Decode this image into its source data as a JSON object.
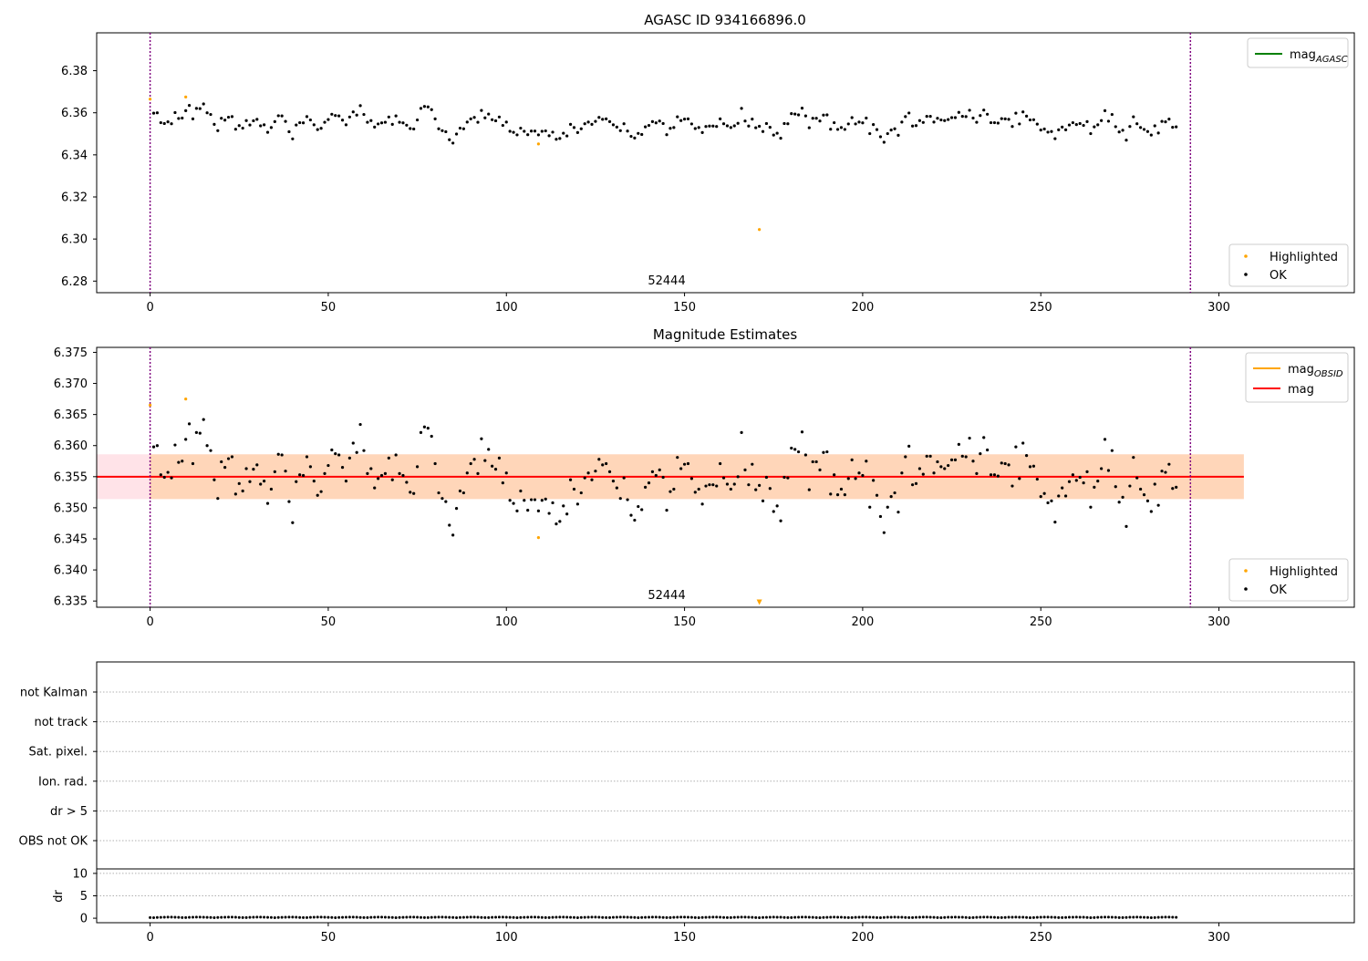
{
  "figure": {
    "suptitle": "AGASC ID 934166896.0"
  },
  "chart_data": [
    {
      "type": "scatter",
      "title": "",
      "obsid_label": "52444",
      "xlim": [
        -15,
        338
      ],
      "ylim": [
        6.2745,
        6.398
      ],
      "xticks": [
        0,
        50,
        100,
        150,
        200,
        250,
        300
      ],
      "yticks": [
        6.28,
        6.3,
        6.32,
        6.34,
        6.36,
        6.38
      ],
      "ytick_labels": [
        "6.28",
        "6.30",
        "6.32",
        "6.34",
        "6.36",
        "6.38"
      ],
      "vlines": [
        0,
        292
      ],
      "vline_color": "#800080",
      "legend_top": {
        "position": "upper right",
        "entries": [
          {
            "label": "mag",
            "subscript": "AGASC",
            "color": "#008000"
          }
        ]
      },
      "legend_bottom": {
        "position": "lower right",
        "entries": [
          {
            "label": "Highlighted",
            "color": "#ffa500"
          },
          {
            "label": "OK",
            "color": "#000000"
          }
        ]
      },
      "highlighted": [
        {
          "x": 0,
          "y": 6.3665
        },
        {
          "x": 10,
          "y": 6.3675
        },
        {
          "x": 109,
          "y": 6.3452
        },
        {
          "x": 171,
          "y": 6.3045
        }
      ]
    },
    {
      "type": "scatter",
      "title": "Magnitude Estimates",
      "obsid_label": "52444",
      "xlim": [
        -15,
        338
      ],
      "ylim": [
        6.334,
        6.3758
      ],
      "xticks": [
        0,
        50,
        100,
        150,
        200,
        250,
        300
      ],
      "yticks": [
        6.335,
        6.34,
        6.345,
        6.35,
        6.355,
        6.36,
        6.365,
        6.37,
        6.375
      ],
      "ytick_labels": [
        "6.335",
        "6.340",
        "6.345",
        "6.350",
        "6.355",
        "6.360",
        "6.365",
        "6.370",
        "6.375"
      ],
      "vlines": [
        0,
        292
      ],
      "vline_color": "#800080",
      "mean_mag": 6.355,
      "band_outer": [
        6.3514,
        6.3586
      ],
      "band_inner": [
        6.3514,
        6.3586
      ],
      "band_x": [
        -15,
        307
      ],
      "inner_band_x": [
        0,
        307
      ],
      "mean_color": "#ff0000",
      "band_color_outer": "#ffc0cb",
      "band_color_inner": "#ffa500",
      "legend_top": {
        "position": "upper right",
        "entries": [
          {
            "label": "mag",
            "subscript": "OBSID",
            "color": "#ffa500"
          },
          {
            "label": "mag",
            "subscript": "",
            "color": "#ff0000"
          }
        ]
      },
      "legend_bottom": {
        "position": "lower right",
        "entries": [
          {
            "label": "Highlighted",
            "color": "#ffa500"
          },
          {
            "label": "OK",
            "color": "#000000"
          }
        ]
      },
      "highlighted": [
        {
          "x": 0,
          "y": 6.3665
        },
        {
          "x": 10,
          "y": 6.3675
        },
        {
          "x": 109,
          "y": 6.3452
        }
      ],
      "off_scale_marker": {
        "x": 171,
        "y": 6.3348,
        "label": "v"
      }
    },
    {
      "type": "flags",
      "categories": [
        "not Kalman",
        "not track",
        "Sat. pixel.",
        "Ion. rad.",
        "dr > 5",
        "OBS not OK"
      ],
      "xlim": [
        -15,
        338
      ],
      "vlines": [
        0,
        292
      ]
    },
    {
      "type": "scatter",
      "ylabel": "dr",
      "ylim": [
        -1,
        11
      ],
      "yticks": [
        0,
        5,
        10
      ],
      "ytick_labels": [
        "0",
        "5",
        "10"
      ],
      "xticks": [
        0,
        50,
        100,
        150,
        200,
        250,
        300
      ],
      "xlim": [
        -15,
        338
      ],
      "vlines": [
        0,
        292
      ],
      "dr_values": "near-zero for every sample (about 0.0 to 0.3)"
    }
  ],
  "series_ok": {
    "name": "OK",
    "x_start": 1,
    "x_end": 292,
    "mags": [
      6.3598,
      6.36,
      6.3553,
      6.3549,
      6.3557,
      6.3548,
      6.3601,
      6.3573,
      6.3575,
      6.361,
      6.3635,
      6.3571,
      6.3621,
      6.362,
      6.3642,
      6.36,
      6.3592,
      6.3545,
      6.3515,
      6.3574,
      6.3565,
      6.3579,
      6.3582,
      6.3522,
      6.3539,
      6.3527,
      6.3563,
      6.3542,
      6.3562,
      6.3569,
      6.3538,
      6.3543,
      6.3507,
      6.353,
      6.3558,
      6.3586,
      6.3585,
      6.3559,
      6.351,
      6.3476,
      6.3542,
      6.3553,
      6.3552,
      6.3582,
      6.3566,
      6.3543,
      6.352,
      6.3526,
      6.3555,
      6.3568,
      6.3593,
      6.3587,
      6.3585,
      6.3565,
      6.3543,
      6.358,
      6.3604,
      6.3589,
      6.3634,
      6.3592,
      6.3555,
      6.3563,
      6.3532,
      6.3547,
      6.3552,
      6.3555,
      6.358,
      6.3545,
      6.3585,
      6.3555,
      6.3552,
      6.3541,
      6.3525,
      6.3523,
      6.3566,
      6.3621,
      6.363,
      6.3628,
      6.3615,
      6.3571,
      6.3524,
      6.3515,
      6.351,
      6.3472,
      6.3456,
      6.3499,
      6.3527,
      6.3524,
      6.3556,
      6.3571,
      6.3578,
      6.3555,
      6.3611,
      6.3576,
      6.3594,
      6.3567,
      6.3562,
      6.358,
      6.354,
      6.3556,
      6.3512,
      6.3507,
      6.3495,
      6.3527,
      6.3512,
      6.3496,
      6.3513,
      6.3513,
      6.3495,
      6.3512,
      6.3514,
      6.3491,
      6.3508,
      6.3474,
      6.3478,
      6.3503,
      6.349,
      6.3545,
      6.353,
      6.3506,
      6.3524,
      6.3548,
      6.3556,
      6.3545,
      6.3559,
      6.3578,
      6.3569,
      6.3571,
      6.3558,
      6.3543,
      6.3532,
      6.3515,
      6.3548,
      6.3513,
      6.3488,
      6.348,
      6.3502,
      6.3497,
      6.3533,
      6.354,
      6.3558,
      6.3552,
      6.3561,
      6.3549,
      6.3496,
      6.3526,
      6.353,
      6.3581,
      6.3563,
      6.357,
      6.3571,
      6.3547,
      6.3525,
      6.353,
      6.3506,
      6.3535,
      6.3537,
      6.3537,
      6.3535,
      6.3571,
      6.3548,
      6.3538,
      6.353,
      6.3538,
      6.355,
      6.3621,
      6.3561,
      6.3537,
      6.357,
      6.3529,
      6.3536,
      6.3511,
      6.3549,
      6.3531,
      6.3494,
      6.3503,
      6.3479,
      6.3549,
      6.3548,
      6.3596,
      6.3594,
      6.359,
      6.3622,
      6.3585,
      6.3529,
      6.3574,
      6.3574,
      6.3561,
      6.3589,
      6.359,
      6.3522,
      6.3553,
      6.3521,
      6.353,
      6.3521,
      6.3547,
      6.3577,
      6.3547,
      6.3556,
      6.3552,
      6.3575,
      6.3501,
      6.3544,
      6.352,
      6.3486,
      6.346,
      6.3501,
      6.3518,
      6.3524,
      6.3493,
      6.3556,
      6.3582,
      6.3599,
      6.3537,
      6.3539,
      6.3563,
      6.3554,
      6.3583,
      6.3583,
      6.3556,
      6.3574,
      6.3566,
      6.3563,
      6.3568,
      6.3577,
      6.3577,
      6.3602,
      6.3583,
      6.3582,
      6.3612,
      6.3575,
      6.3555,
      6.3587,
      6.3613,
      6.3593,
      6.3553,
      6.3553,
      6.3551,
      6.3572,
      6.3571,
      6.3569,
      6.3535,
      6.3598,
      6.3547,
      6.3604,
      6.3584,
      6.3566,
      6.3567,
      6.3546,
      6.3518,
      6.3523,
      6.3508,
      6.3511,
      6.3477,
      6.3519,
      6.3532,
      6.3519,
      6.3542,
      6.3553,
      6.3544,
      6.3549,
      6.354,
      6.3558,
      6.3501,
      6.3533,
      6.3543,
      6.3563,
      6.361,
      6.356,
      6.3592,
      6.3534,
      6.3509,
      6.3517,
      6.347,
      6.3535,
      6.3581,
      6.3548,
      6.353,
      6.3521,
      6.3511,
      6.3494,
      6.3538,
      6.3504,
      6.3559,
      6.3557,
      6.357,
      6.3531,
      6.3533
    ]
  }
}
